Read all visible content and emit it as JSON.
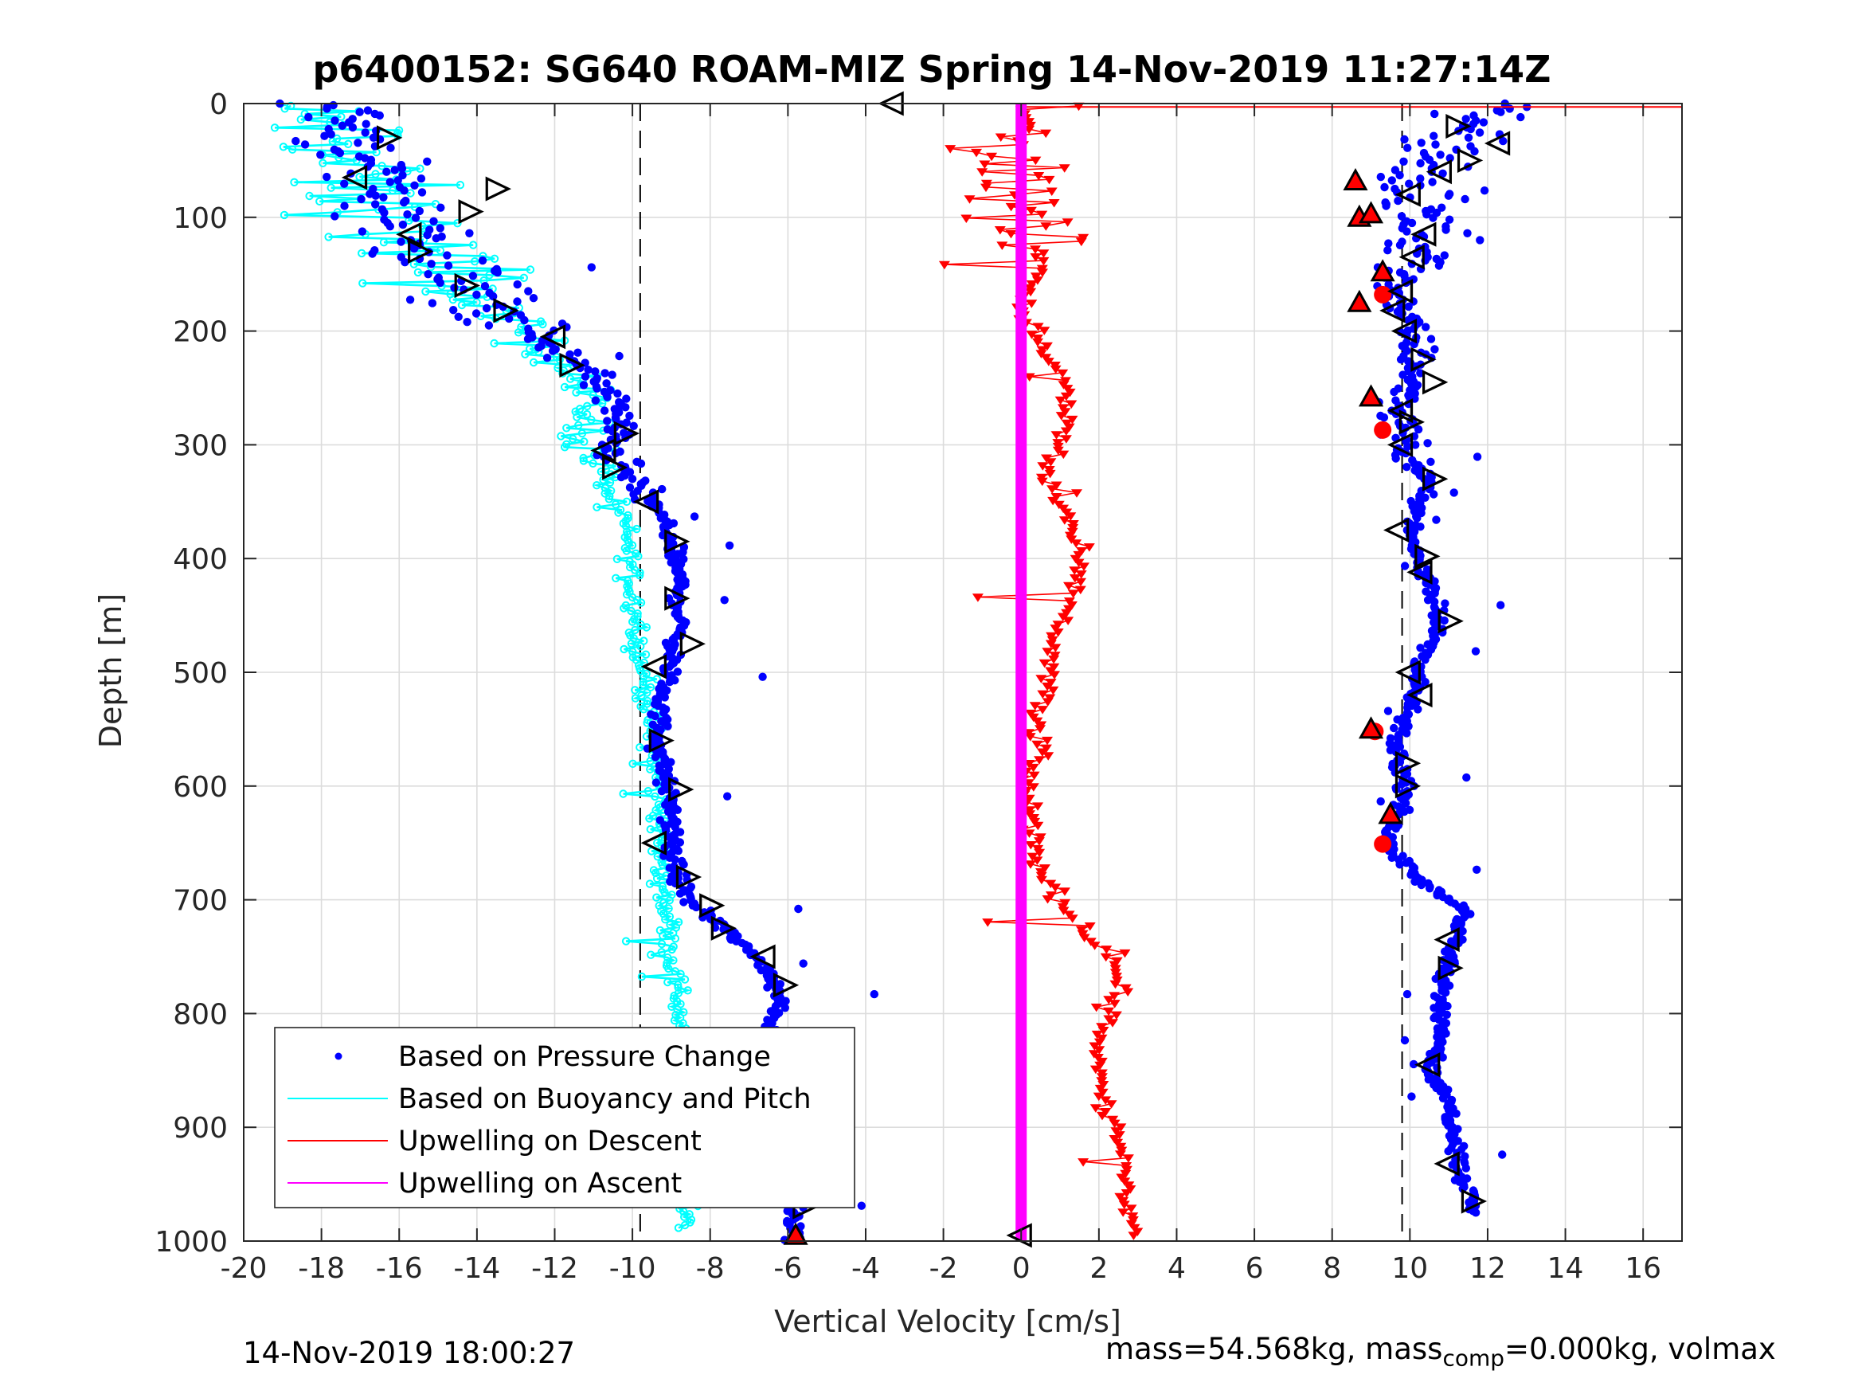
{
  "chart_data": {
    "type": "scatter",
    "title": "p6400152: SG640 ROAM-MIZ Spring 14-Nov-2019 11:27:14Z",
    "xlabel": "Vertical Velocity [cm/s]",
    "ylabel": "Depth [m]",
    "xlim": [
      -20,
      17
    ],
    "ylim": [
      1000,
      0
    ],
    "y_reversed": true,
    "grid": true,
    "x_ticks": [
      -20,
      -18,
      -16,
      -14,
      -12,
      -10,
      -8,
      -6,
      -4,
      -2,
      0,
      2,
      4,
      6,
      8,
      10,
      12,
      14,
      16
    ],
    "x_tick_labels": [
      "-20",
      "-18",
      "-16",
      "-14",
      "-12",
      "-10",
      "-8",
      "-6",
      "-4",
      "-2",
      "0",
      "2",
      "4",
      "6",
      "8",
      "10",
      "12",
      "14",
      "16"
    ],
    "y_ticks": [
      0,
      100,
      200,
      300,
      400,
      500,
      600,
      700,
      800,
      900,
      1000
    ],
    "y_tick_labels": [
      "0",
      "100",
      "200",
      "300",
      "400",
      "500",
      "600",
      "700",
      "800",
      "900",
      "1000"
    ],
    "reference_lines_x": [
      -9.8,
      9.8
    ],
    "legend_position": "bottom-left",
    "series": [
      {
        "name": "Based on Pressure Change",
        "color": "#0000ff",
        "marker": "dot",
        "descent_profile": [
          [
            -17.5,
            5
          ],
          [
            -17.2,
            20
          ],
          [
            -17.0,
            40
          ],
          [
            -16.5,
            60
          ],
          [
            -16.3,
            80
          ],
          [
            -15.6,
            110
          ],
          [
            -15.0,
            140
          ],
          [
            -14.0,
            170
          ],
          [
            -13.0,
            195
          ],
          [
            -12.0,
            215
          ],
          [
            -10.8,
            245
          ],
          [
            -10.4,
            270
          ],
          [
            -10.5,
            300
          ],
          [
            -10.3,
            320
          ],
          [
            -9.5,
            350
          ],
          [
            -9.0,
            380
          ],
          [
            -8.8,
            420
          ],
          [
            -8.8,
            460
          ],
          [
            -9.0,
            490
          ],
          [
            -9.3,
            530
          ],
          [
            -9.3,
            560
          ],
          [
            -9.2,
            590
          ],
          [
            -9.0,
            620
          ],
          [
            -9.0,
            660
          ],
          [
            -8.6,
            700
          ],
          [
            -7.8,
            720
          ],
          [
            -7.2,
            740
          ],
          [
            -6.5,
            760
          ],
          [
            -6.2,
            790
          ],
          [
            -6.5,
            820
          ],
          [
            -6.6,
            850
          ],
          [
            -6.5,
            880
          ],
          [
            -6.3,
            910
          ],
          [
            -6.0,
            940
          ],
          [
            -5.8,
            970
          ],
          [
            -5.8,
            995
          ]
        ],
        "ascent_profile": [
          [
            12.5,
            5
          ],
          [
            11.5,
            20
          ],
          [
            10.8,
            40
          ],
          [
            10.2,
            60
          ],
          [
            10.0,
            80
          ],
          [
            10.3,
            100
          ],
          [
            10.5,
            120
          ],
          [
            10.0,
            140
          ],
          [
            9.6,
            160
          ],
          [
            9.8,
            180
          ],
          [
            10.0,
            200
          ],
          [
            10.2,
            225
          ],
          [
            10.0,
            250
          ],
          [
            9.7,
            270
          ],
          [
            9.8,
            290
          ],
          [
            9.9,
            310
          ],
          [
            10.5,
            330
          ],
          [
            10.3,
            350
          ],
          [
            10.0,
            375
          ],
          [
            10.2,
            400
          ],
          [
            10.5,
            420
          ],
          [
            10.8,
            450
          ],
          [
            10.6,
            470
          ],
          [
            10.2,
            500
          ],
          [
            10.0,
            530
          ],
          [
            9.6,
            560
          ],
          [
            9.8,
            585
          ],
          [
            9.9,
            610
          ],
          [
            9.5,
            640
          ],
          [
            9.6,
            660
          ],
          [
            10.5,
            690
          ],
          [
            11.5,
            710
          ],
          [
            11.1,
            740
          ],
          [
            10.8,
            770
          ],
          [
            10.8,
            800
          ],
          [
            10.9,
            820
          ],
          [
            10.5,
            850
          ],
          [
            11.0,
            880
          ],
          [
            11.2,
            910
          ],
          [
            11.3,
            940
          ],
          [
            11.6,
            965
          ]
        ]
      },
      {
        "name": "Based on Buoyancy and Pitch",
        "color": "#00ffff",
        "marker": "o-line",
        "profile": [
          [
            -19.0,
            5
          ],
          [
            -18.0,
            15
          ],
          [
            -17.3,
            30
          ],
          [
            -17.5,
            50
          ],
          [
            -17.0,
            65
          ],
          [
            -17.0,
            80
          ],
          [
            -16.3,
            100
          ],
          [
            -15.8,
            120
          ],
          [
            -14.8,
            150
          ],
          [
            -14.2,
            170
          ],
          [
            -13.0,
            190
          ],
          [
            -12.6,
            205
          ],
          [
            -12.0,
            220
          ],
          [
            -11.5,
            235
          ],
          [
            -11.2,
            255
          ],
          [
            -11.1,
            275
          ],
          [
            -11.2,
            290
          ],
          [
            -11.0,
            310
          ],
          [
            -10.8,
            330
          ],
          [
            -10.4,
            350
          ],
          [
            -10.2,
            370
          ],
          [
            -10.1,
            390
          ],
          [
            -10.0,
            410
          ],
          [
            -10.0,
            430
          ],
          [
            -9.8,
            460
          ],
          [
            -9.9,
            480
          ],
          [
            -9.7,
            500
          ],
          [
            -9.6,
            530
          ],
          [
            -9.5,
            560
          ],
          [
            -9.4,
            590
          ],
          [
            -9.3,
            620
          ],
          [
            -9.3,
            650
          ],
          [
            -9.2,
            680
          ],
          [
            -9.1,
            710
          ],
          [
            -9.0,
            750
          ],
          [
            -8.8,
            790
          ],
          [
            -8.7,
            830
          ],
          [
            -8.7,
            870
          ],
          [
            -8.7,
            910
          ],
          [
            -8.6,
            950
          ],
          [
            -8.6,
            985
          ]
        ]
      },
      {
        "name": "Upwelling on Descent",
        "color": "#ff0000",
        "marker": "triangle-down",
        "profile": [
          [
            0.5,
            5
          ],
          [
            1.3,
            20
          ],
          [
            -1.2,
            40
          ],
          [
            0.2,
            60
          ],
          [
            -0.3,
            80
          ],
          [
            0.3,
            100
          ],
          [
            0.5,
            120
          ],
          [
            0.6,
            140
          ],
          [
            0.3,
            160
          ],
          [
            0.0,
            180
          ],
          [
            0.4,
            200
          ],
          [
            0.6,
            220
          ],
          [
            1.0,
            240
          ],
          [
            1.1,
            260
          ],
          [
            1.2,
            280
          ],
          [
            1.0,
            300
          ],
          [
            0.6,
            320
          ],
          [
            0.8,
            340
          ],
          [
            1.2,
            360
          ],
          [
            1.3,
            380
          ],
          [
            1.5,
            400
          ],
          [
            1.3,
            420
          ],
          [
            1.2,
            440
          ],
          [
            1.0,
            460
          ],
          [
            0.8,
            480
          ],
          [
            0.7,
            500
          ],
          [
            0.6,
            520
          ],
          [
            0.3,
            540
          ],
          [
            0.5,
            560
          ],
          [
            0.3,
            580
          ],
          [
            0.2,
            600
          ],
          [
            0.2,
            620
          ],
          [
            0.3,
            640
          ],
          [
            0.4,
            660
          ],
          [
            0.6,
            680
          ],
          [
            1.0,
            700
          ],
          [
            1.5,
            720
          ],
          [
            2.0,
            740
          ],
          [
            2.5,
            760
          ],
          [
            2.5,
            780
          ],
          [
            2.3,
            800
          ],
          [
            2.1,
            820
          ],
          [
            2.0,
            840
          ],
          [
            2.0,
            860
          ],
          [
            2.1,
            880
          ],
          [
            2.4,
            900
          ],
          [
            2.6,
            920
          ],
          [
            2.7,
            940
          ],
          [
            2.7,
            960
          ],
          [
            2.8,
            980
          ],
          [
            3.0,
            995
          ]
        ]
      },
      {
        "name": "Upwelling on Ascent",
        "color": "#ff00ff",
        "marker": "line",
        "profile": [
          [
            0,
            0
          ],
          [
            0,
            1000
          ]
        ]
      }
    ],
    "triangle_markers": [
      {
        "x": -3.3,
        "y": 0,
        "dir": "left"
      },
      {
        "x": -16.3,
        "y": 30,
        "dir": "right"
      },
      {
        "x": -17.1,
        "y": 65,
        "dir": "left"
      },
      {
        "x": -13.5,
        "y": 75,
        "dir": "right"
      },
      {
        "x": -14.2,
        "y": 95,
        "dir": "right"
      },
      {
        "x": -15.7,
        "y": 115,
        "dir": "left"
      },
      {
        "x": -15.5,
        "y": 130,
        "dir": "right"
      },
      {
        "x": -14.3,
        "y": 160,
        "dir": "right"
      },
      {
        "x": -13.3,
        "y": 182,
        "dir": "right"
      },
      {
        "x": -12.0,
        "y": 205,
        "dir": "left"
      },
      {
        "x": -11.6,
        "y": 230,
        "dir": "right"
      },
      {
        "x": -10.2,
        "y": 290,
        "dir": "right"
      },
      {
        "x": -10.7,
        "y": 305,
        "dir": "left"
      },
      {
        "x": -10.5,
        "y": 320,
        "dir": "right"
      },
      {
        "x": -9.6,
        "y": 350,
        "dir": "left"
      },
      {
        "x": -8.9,
        "y": 385,
        "dir": "right"
      },
      {
        "x": -8.9,
        "y": 435,
        "dir": "right"
      },
      {
        "x": -8.5,
        "y": 475,
        "dir": "right"
      },
      {
        "x": -9.4,
        "y": 495,
        "dir": "left"
      },
      {
        "x": -9.3,
        "y": 560,
        "dir": "right"
      },
      {
        "x": -8.8,
        "y": 603,
        "dir": "right"
      },
      {
        "x": -9.4,
        "y": 650,
        "dir": "left"
      },
      {
        "x": -8.6,
        "y": 680,
        "dir": "right"
      },
      {
        "x": -8.0,
        "y": 705,
        "dir": "right"
      },
      {
        "x": -7.7,
        "y": 725,
        "dir": "right"
      },
      {
        "x": -6.6,
        "y": 750,
        "dir": "left"
      },
      {
        "x": -6.1,
        "y": 775,
        "dir": "right"
      },
      {
        "x": -6.8,
        "y": 830,
        "dir": "left"
      },
      {
        "x": -6.9,
        "y": 850,
        "dir": "left"
      },
      {
        "x": -6.8,
        "y": 870,
        "dir": "left"
      },
      {
        "x": -6.4,
        "y": 895,
        "dir": "left"
      },
      {
        "x": -6.1,
        "y": 915,
        "dir": "left"
      },
      {
        "x": -5.9,
        "y": 935,
        "dir": "right"
      },
      {
        "x": -5.6,
        "y": 970,
        "dir": "right"
      },
      {
        "x": 11.2,
        "y": 20,
        "dir": "right"
      },
      {
        "x": 12.3,
        "y": 35,
        "dir": "left"
      },
      {
        "x": 11.5,
        "y": 50,
        "dir": "right"
      },
      {
        "x": 10.8,
        "y": 60,
        "dir": "left"
      },
      {
        "x": 10.0,
        "y": 80,
        "dir": "left"
      },
      {
        "x": 10.4,
        "y": 115,
        "dir": "left"
      },
      {
        "x": 10.1,
        "y": 135,
        "dir": "left"
      },
      {
        "x": 9.8,
        "y": 165,
        "dir": "left"
      },
      {
        "x": 9.6,
        "y": 182,
        "dir": "left"
      },
      {
        "x": 9.9,
        "y": 200,
        "dir": "left"
      },
      {
        "x": 10.3,
        "y": 225,
        "dir": "right"
      },
      {
        "x": 10.6,
        "y": 245,
        "dir": "right"
      },
      {
        "x": 9.8,
        "y": 270,
        "dir": "left"
      },
      {
        "x": 10.0,
        "y": 280,
        "dir": "right"
      },
      {
        "x": 9.8,
        "y": 300,
        "dir": "left"
      },
      {
        "x": 10.6,
        "y": 330,
        "dir": "right"
      },
      {
        "x": 9.7,
        "y": 375,
        "dir": "left"
      },
      {
        "x": 10.4,
        "y": 398,
        "dir": "right"
      },
      {
        "x": 10.3,
        "y": 412,
        "dir": "left"
      },
      {
        "x": 11.0,
        "y": 455,
        "dir": "right"
      },
      {
        "x": 10.0,
        "y": 500,
        "dir": "left"
      },
      {
        "x": 10.3,
        "y": 520,
        "dir": "left"
      },
      {
        "x": 9.9,
        "y": 580,
        "dir": "right"
      },
      {
        "x": 9.9,
        "y": 600,
        "dir": "right"
      },
      {
        "x": 11.0,
        "y": 735,
        "dir": "left"
      },
      {
        "x": 11.0,
        "y": 760,
        "dir": "right"
      },
      {
        "x": 10.5,
        "y": 845,
        "dir": "left"
      },
      {
        "x": 11.0,
        "y": 932,
        "dir": "left"
      },
      {
        "x": 11.6,
        "y": 965,
        "dir": "right"
      },
      {
        "x": 0.0,
        "y": 995,
        "dir": "left"
      }
    ],
    "red_up_triangles": [
      {
        "x": 8.6,
        "y": 68
      },
      {
        "x": 8.7,
        "y": 100
      },
      {
        "x": 9.0,
        "y": 97
      },
      {
        "x": 9.3,
        "y": 148
      },
      {
        "x": 8.7,
        "y": 175
      },
      {
        "x": 9.0,
        "y": 258
      },
      {
        "x": 9.0,
        "y": 550
      },
      {
        "x": 9.5,
        "y": 625
      },
      {
        "x": -5.8,
        "y": 995
      }
    ],
    "red_dots": [
      {
        "x": 9.3,
        "y": 168
      },
      {
        "x": 9.3,
        "y": 287
      },
      {
        "x": 9.3,
        "y": 651
      },
      {
        "x": 9.1,
        "y": 552
      }
    ]
  },
  "footer": {
    "timestamp": "14-Nov-2019 18:00:27",
    "mass_prefix": "mass=54.568kg, mass",
    "mass_sub": "comp",
    "mass_suffix": "=0.000kg, volmax"
  },
  "colors": {
    "pressure": "#0000ff",
    "buoyancy": "#00ffff",
    "descent": "#ff0000",
    "ascent": "#ff00ff",
    "grid": "#dcdcdc",
    "axis": "#262626"
  }
}
